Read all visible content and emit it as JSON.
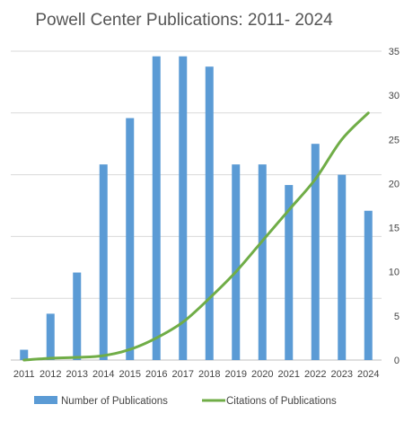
{
  "chart_data": {
    "type": "bar+line",
    "title": "Powell Center Publications: 2011- 2024",
    "categories": [
      "2011",
      "2012",
      "2013",
      "2014",
      "2015",
      "2016",
      "2017",
      "2018",
      "2019",
      "2020",
      "2021",
      "2022",
      "2023",
      "2024"
    ],
    "series": [
      {
        "name": "Number of Publications",
        "type": "bar",
        "axis": "left",
        "color": "#5b9bd5",
        "values": [
          2,
          9,
          17,
          38,
          47,
          59,
          59,
          57,
          38,
          38,
          34,
          42,
          36,
          29
        ]
      },
      {
        "name": "Citations of Publications",
        "type": "line",
        "axis": "right",
        "color": "#70ad47",
        "values": [
          0,
          0.2,
          0.3,
          0.5,
          1.2,
          2.5,
          4.3,
          7,
          10,
          13.5,
          17,
          20.5,
          25,
          28
        ]
      }
    ],
    "y_left": {
      "min": 0,
      "max": 60,
      "gridlines": [
        12,
        24,
        36,
        48,
        60
      ],
      "labels_shown": false
    },
    "y_right": {
      "min": 0,
      "max": 35,
      "ticks": [
        0,
        5,
        10,
        15,
        20,
        25,
        30,
        35
      ],
      "tick_labels": [
        "0",
        "5",
        "10",
        "15",
        "20",
        "25",
        "30",
        "35"
      ]
    },
    "grid": true,
    "legend": "bottom"
  }
}
